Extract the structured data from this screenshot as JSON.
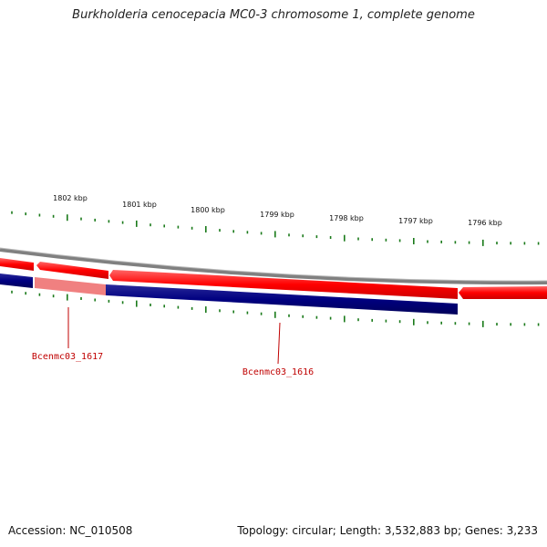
{
  "title": "Burkholderia cenocepacia MC0-3 chromosome 1, complete genome",
  "footer": {
    "accession": "Accession: NC_010508",
    "summary": "Topology: circular; Length: 3,532,883 bp; Genes: 3,233"
  },
  "colors": {
    "forward_gene": "#ff0000",
    "reverse_gene": "#000080",
    "reverse_gene_highlight": "#f08080",
    "backbone": "#808080",
    "tick": "#1a7a1a",
    "gene_label": "#c00000"
  },
  "kbp_labels": [
    "1802 kbp",
    "1801 kbp",
    "1800 kbp",
    "1799 kbp",
    "1798 kbp",
    "1797 kbp",
    "1796 kbp"
  ],
  "gene_labels": [
    "Bcenmc03_1617",
    "Bcenmc03_1616"
  ]
}
